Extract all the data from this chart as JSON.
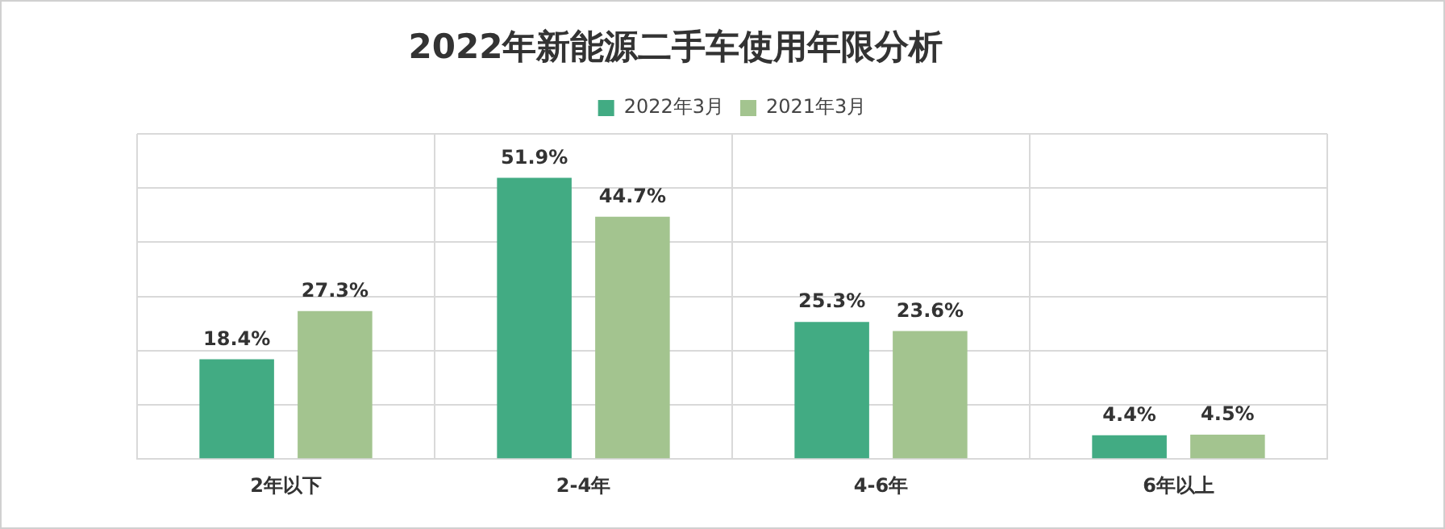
{
  "chart_data": {
    "type": "bar",
    "title": "2022年新能源二手车使用年限分析",
    "categories": [
      "2年以下",
      "2-4年",
      "4-6年",
      "6年以上"
    ],
    "series": [
      {
        "name": "2022年3月",
        "color": "#42ab83",
        "values": [
          18.4,
          51.9,
          25.3,
          4.4
        ],
        "value_labels": [
          "18.4%",
          "51.9%",
          "25.3%",
          "4.4%"
        ]
      },
      {
        "name": "2021年3月",
        "color": "#a3c48f",
        "values": [
          27.3,
          44.7,
          23.6,
          4.5
        ],
        "value_labels": [
          "27.3%",
          "44.7%",
          "23.6%",
          "4.5%"
        ]
      }
    ],
    "tick_labels": "x",
    "grid": true,
    "legend": "top"
  }
}
